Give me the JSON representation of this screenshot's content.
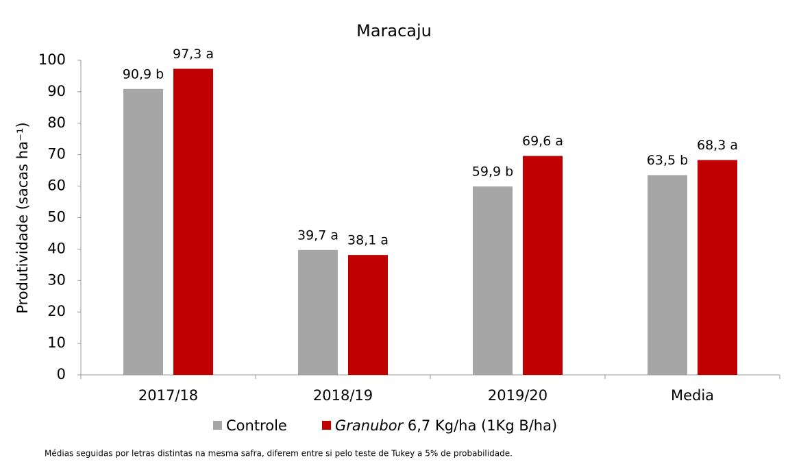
{
  "chart_data": {
    "type": "bar",
    "title": "Maracaju",
    "y_label": "Produtividade (sacas ha⁻¹)",
    "categories": [
      "2017/18",
      "2018/19",
      "2019/20",
      "Media"
    ],
    "series": [
      {
        "name": "Controle",
        "color": "#a6a6a6",
        "values": [
          90.9,
          39.7,
          59.9,
          63.5
        ],
        "value_labels": [
          "90,9 b",
          "39,7 a",
          "59,9 b",
          "63,5 b"
        ]
      },
      {
        "name": "Granubor 6,7 Kg/ha (1Kg B/ha)",
        "color": "#c00000",
        "values": [
          97.3,
          38.1,
          69.6,
          68.3
        ],
        "value_labels": [
          "97,3 a",
          "38,1 a",
          "69,6 a",
          "68,3 a"
        ]
      }
    ],
    "ylim": [
      0,
      100
    ],
    "yticks": [
      0,
      10,
      20,
      30,
      40,
      50,
      60,
      70,
      80,
      90,
      100
    ],
    "grid": false,
    "footnote": "Médias seguidas por letras distintas na mesma safra, diferem entre si pelo teste de Tukey a 5% de probabilidade."
  }
}
